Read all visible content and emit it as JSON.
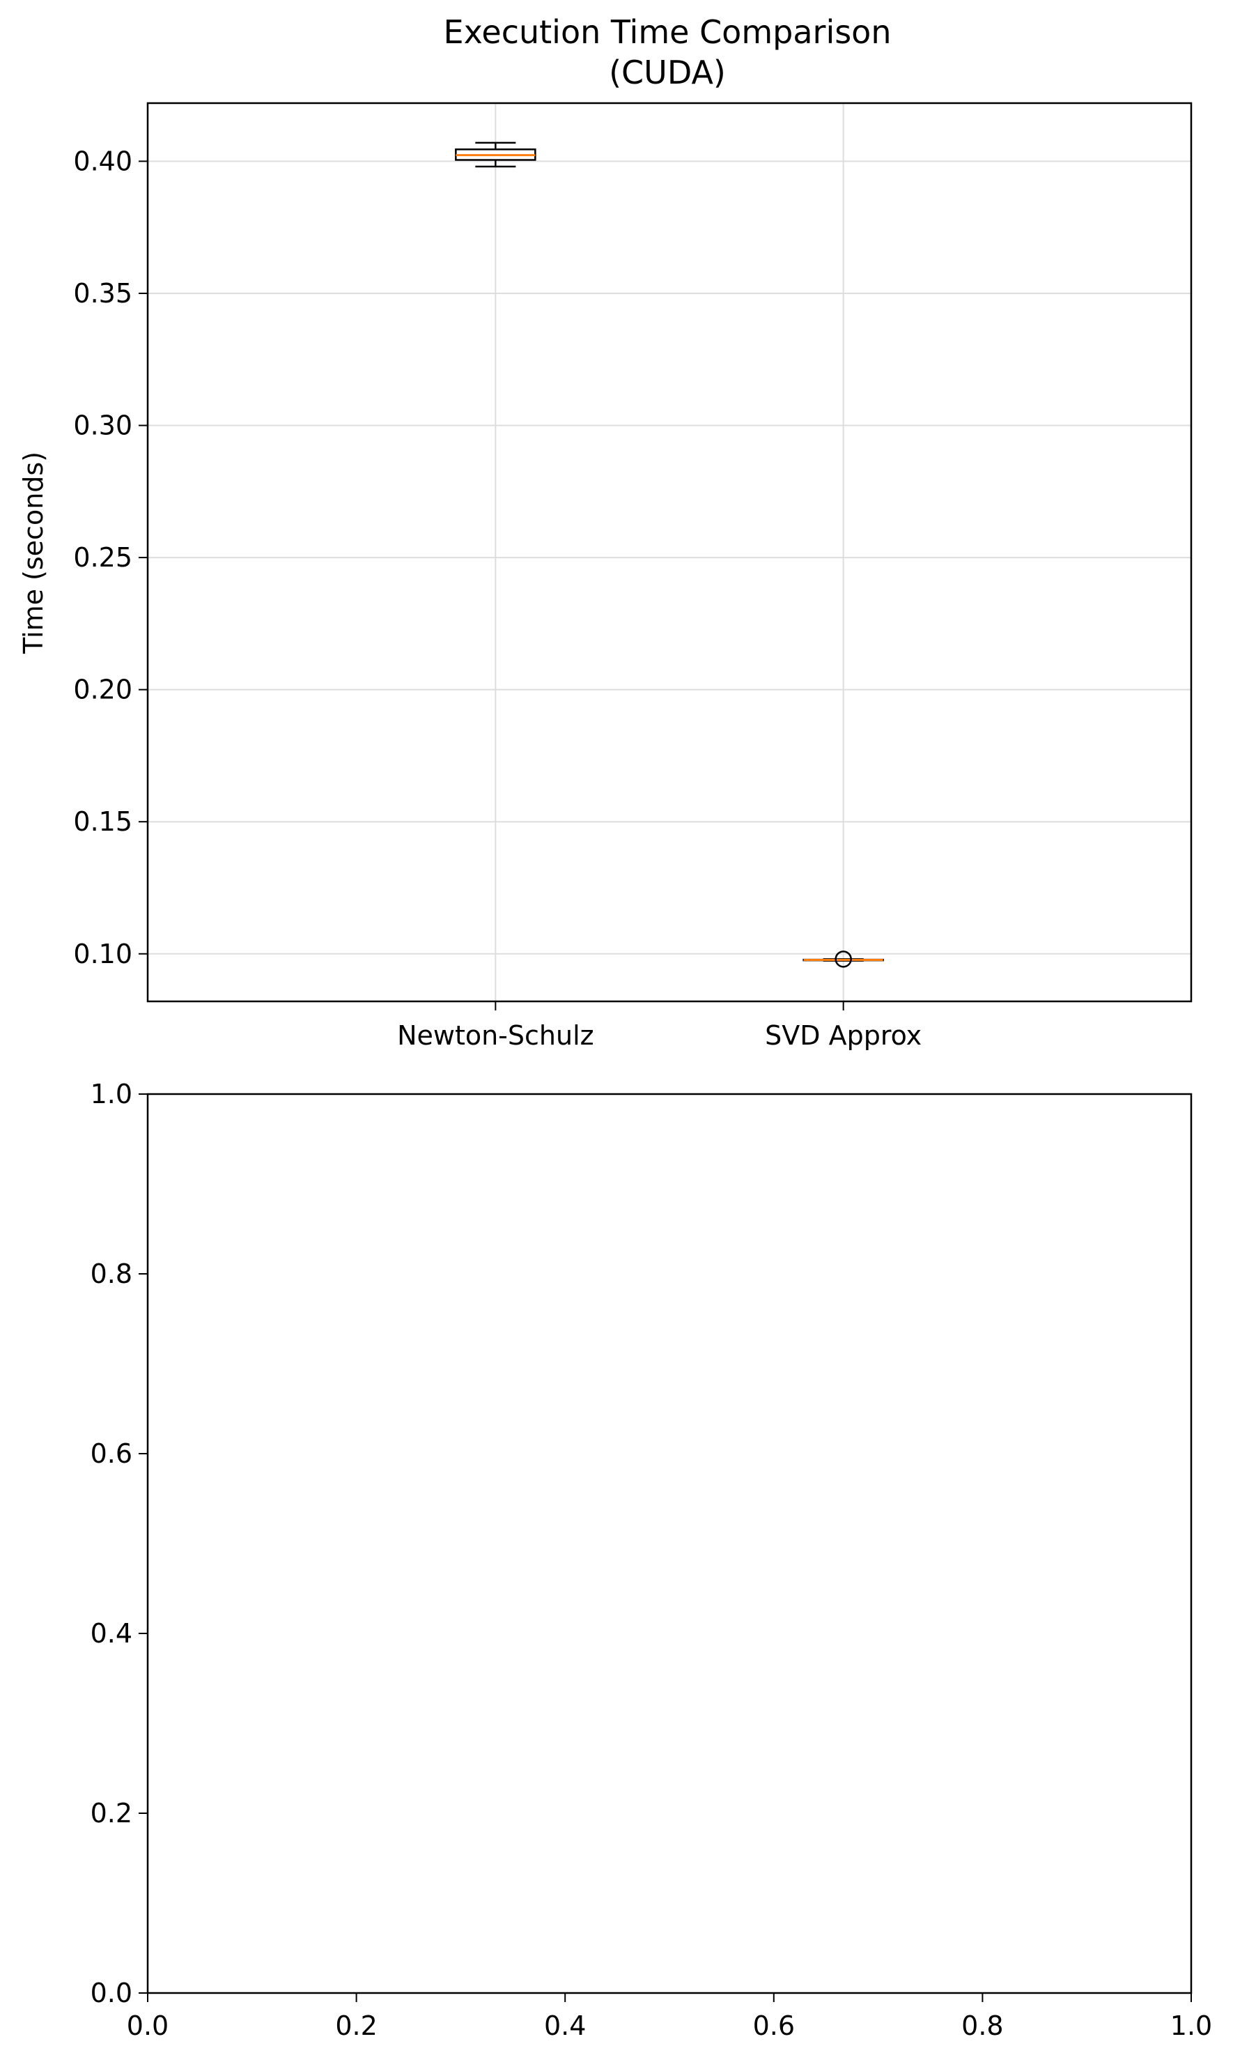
{
  "chart_data": [
    {
      "type": "box",
      "title": "Execution Time Comparison\n(CUDA)",
      "title_lines": [
        "Execution Time Comparison",
        "(CUDA)"
      ],
      "xlabel": "",
      "ylabel": "Time (seconds)",
      "categories": [
        "Newton-Schulz",
        "SVD Approx"
      ],
      "ylim": [
        0.082,
        0.422
      ],
      "yticks": [
        0.1,
        0.15,
        0.2,
        0.25,
        0.3,
        0.35,
        0.4
      ],
      "ytick_labels": [
        "0.10",
        "0.15",
        "0.20",
        "0.25",
        "0.30",
        "0.35",
        "0.40"
      ],
      "grid": true,
      "boxes": [
        {
          "name": "Newton-Schulz",
          "whisker_low": 0.398,
          "q1": 0.4005,
          "median": 0.4023,
          "q3": 0.4045,
          "whisker_high": 0.407,
          "outliers": []
        },
        {
          "name": "SVD Approx",
          "whisker_low": 0.0974,
          "q1": 0.0976,
          "median": 0.0977,
          "q3": 0.0978,
          "whisker_high": 0.098,
          "outliers": [
            0.098
          ]
        }
      ],
      "colors": {
        "box_edge": "#000000",
        "box_fill": "#ffffff",
        "median": "#ff7f0e",
        "grid": "#dddddd"
      }
    },
    {
      "type": "empty",
      "title": "",
      "xlabel": "",
      "ylabel": "",
      "xlim": [
        0.0,
        1.0
      ],
      "ylim": [
        0.0,
        1.0
      ],
      "xticks": [
        0.0,
        0.2,
        0.4,
        0.6,
        0.8,
        1.0
      ],
      "xtick_labels": [
        "0.0",
        "0.2",
        "0.4",
        "0.6",
        "0.8",
        "1.0"
      ],
      "yticks": [
        0.0,
        0.2,
        0.4,
        0.6,
        0.8,
        1.0
      ],
      "ytick_labels": [
        "0.0",
        "0.2",
        "0.4",
        "0.6",
        "0.8",
        "1.0"
      ],
      "grid": false
    }
  ]
}
